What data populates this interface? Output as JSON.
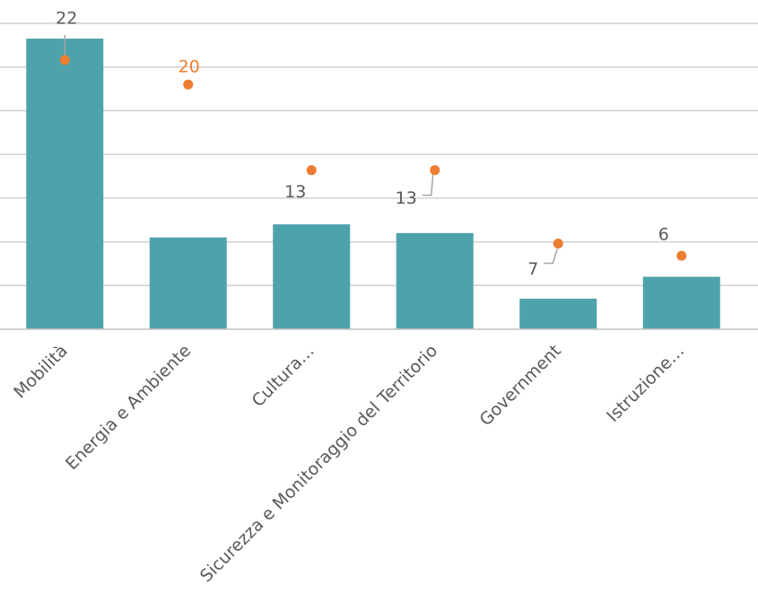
{
  "chart_data": {
    "type": "bar",
    "categories": [
      "Mobilità",
      "Energia e Ambiente",
      "Cultura…",
      "Sicurezza e Monitoraggio del Territorio",
      "Government",
      "Istruzione…"
    ],
    "series": [
      {
        "type": "bar",
        "color": "#4ea2ac",
        "values": [
          6.65,
          2.1,
          2.4,
          2.2,
          0.7,
          1.2
        ]
      },
      {
        "type": "scatter",
        "axis": "y2",
        "color": "#ed7d31",
        "values": [
          22,
          20,
          13,
          13,
          7,
          6
        ]
      }
    ],
    "ylim": [
      0,
      7
    ],
    "yticks": [
      0,
      1,
      2,
      3,
      4,
      5,
      6,
      7
    ],
    "y2lim": [
      0,
      25
    ],
    "grid": true
  }
}
